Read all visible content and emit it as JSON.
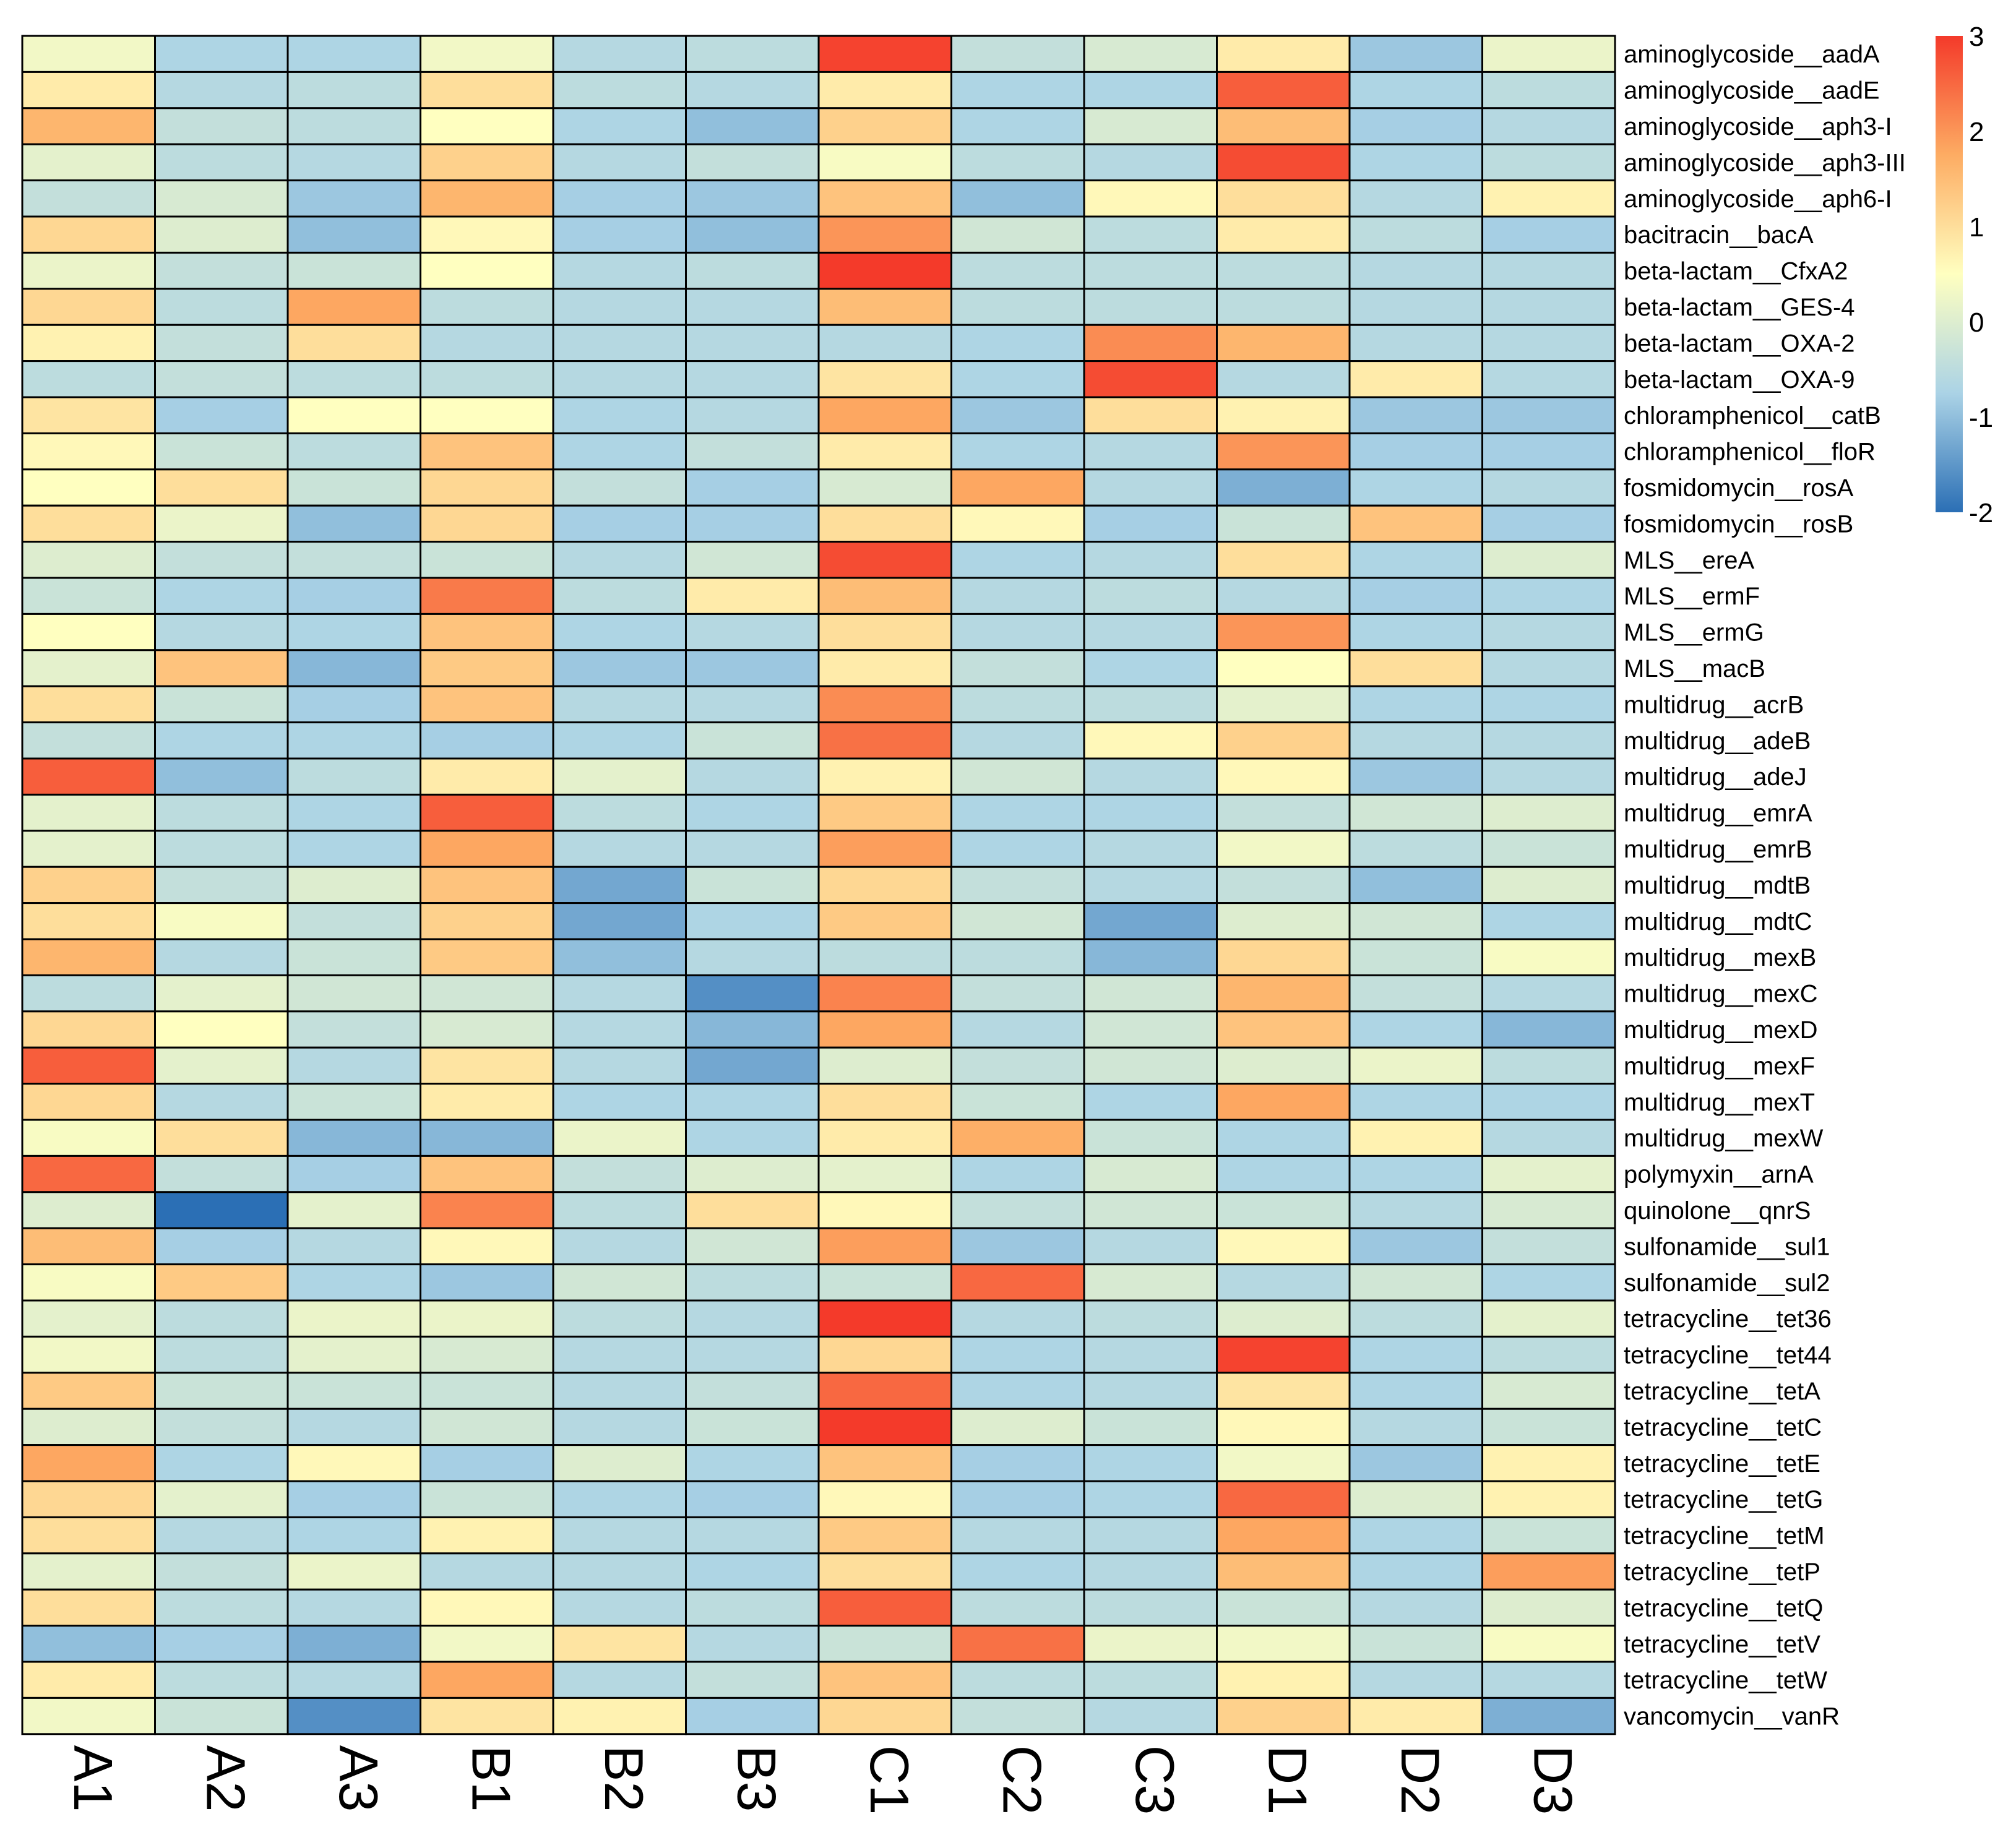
{
  "chart_data": {
    "type": "heatmap",
    "title": "",
    "xlabel": "",
    "ylabel": "",
    "columns": [
      "A1",
      "A2",
      "A3",
      "B1",
      "B2",
      "B3",
      "C1",
      "C2",
      "C3",
      "D1",
      "D2",
      "D3"
    ],
    "rows": [
      "aminoglycoside__aadA",
      "aminoglycoside__aadE",
      "aminoglycoside__aph3-I",
      "aminoglycoside__aph3-III",
      "aminoglycoside__aph6-I",
      "bacitracin__bacA",
      "beta-lactam__CfxA2",
      "beta-lactam__GES-4",
      "beta-lactam__OXA-2",
      "beta-lactam__OXA-9",
      "chloramphenicol__catB",
      "chloramphenicol__floR",
      "fosmidomycin__rosA",
      "fosmidomycin__rosB",
      "MLS__ereA",
      "MLS__ermF",
      "MLS__ermG",
      "MLS__macB",
      "multidrug__acrB",
      "multidrug__adeB",
      "multidrug__adeJ",
      "multidrug__emrA",
      "multidrug__emrB",
      "multidrug__mdtB",
      "multidrug__mdtC",
      "multidrug__mexB",
      "multidrug__mexC",
      "multidrug__mexD",
      "multidrug__mexF",
      "multidrug__mexT",
      "multidrug__mexW",
      "polymyxin__arnA",
      "quinolone__qnrS",
      "sulfonamide__sul1",
      "sulfonamide__sul2",
      "tetracycline__tet36",
      "tetracycline__tet44",
      "tetracycline__tetA",
      "tetracycline__tetC",
      "tetracycline__tetE",
      "tetracycline__tetG",
      "tetracycline__tetM",
      "tetracycline__tetP",
      "tetracycline__tetQ",
      "tetracycline__tetV",
      "tetracycline__tetW",
      "vancomycin__vanR"
    ],
    "values": [
      [
        0.3,
        -0.7,
        -0.7,
        0.3,
        -0.6,
        -0.5,
        2.9,
        -0.4,
        -0.1,
        0.8,
        -0.9,
        0.2
      ],
      [
        0.8,
        -0.6,
        -0.5,
        1.0,
        -0.5,
        -0.6,
        0.8,
        -0.7,
        -0.7,
        2.6,
        -0.7,
        -0.5
      ],
      [
        1.6,
        -0.4,
        -0.5,
        0.5,
        -0.7,
        -1.0,
        1.2,
        -0.7,
        -0.1,
        1.5,
        -0.8,
        -0.6
      ],
      [
        0.1,
        -0.5,
        -0.6,
        1.2,
        -0.6,
        -0.4,
        0.4,
        -0.5,
        -0.6,
        2.8,
        -0.7,
        -0.5
      ],
      [
        -0.4,
        -0.1,
        -0.9,
        1.6,
        -0.8,
        -0.9,
        1.4,
        -1.0,
        0.6,
        1.0,
        -0.6,
        0.7
      ],
      [
        1.1,
        0.0,
        -1.0,
        0.6,
        -0.8,
        -1.0,
        2.0,
        -0.2,
        -0.5,
        0.8,
        -0.5,
        -0.8
      ],
      [
        0.2,
        -0.4,
        -0.3,
        0.5,
        -0.6,
        -0.5,
        3.0,
        -0.5,
        -0.5,
        -0.5,
        -0.6,
        -0.6
      ],
      [
        1.1,
        -0.5,
        1.8,
        -0.5,
        -0.6,
        -0.6,
        1.5,
        -0.5,
        -0.5,
        -0.5,
        -0.6,
        -0.6
      ],
      [
        0.7,
        -0.4,
        1.0,
        -0.6,
        -0.6,
        -0.6,
        -0.6,
        -0.7,
        2.1,
        1.6,
        -0.6,
        -0.6
      ],
      [
        -0.5,
        -0.4,
        -0.5,
        -0.5,
        -0.6,
        -0.6,
        0.9,
        -0.7,
        2.8,
        -0.6,
        0.8,
        -0.6
      ],
      [
        0.9,
        -0.8,
        0.5,
        0.5,
        -0.7,
        -0.6,
        1.8,
        -0.9,
        1.0,
        0.7,
        -0.9,
        -0.9
      ],
      [
        0.6,
        -0.3,
        -0.5,
        1.4,
        -0.7,
        -0.4,
        0.8,
        -0.7,
        -0.6,
        2.0,
        -0.8,
        -0.8
      ],
      [
        0.5,
        1.0,
        -0.3,
        1.1,
        -0.4,
        -0.8,
        -0.1,
        1.8,
        -0.6,
        -1.2,
        -0.7,
        -0.6
      ],
      [
        1.0,
        0.2,
        -1.0,
        1.1,
        -0.8,
        -0.8,
        1.0,
        0.6,
        -0.8,
        -0.3,
        1.4,
        -0.8
      ],
      [
        0.0,
        -0.4,
        -0.4,
        -0.3,
        -0.6,
        -0.2,
        2.8,
        -0.7,
        -0.6,
        1.0,
        -0.7,
        0.0
      ],
      [
        -0.3,
        -0.7,
        -0.8,
        2.3,
        -0.5,
        0.8,
        1.5,
        -0.6,
        -0.5,
        -0.6,
        -0.8,
        -0.7
      ],
      [
        0.5,
        -0.6,
        -0.7,
        1.4,
        -0.7,
        -0.6,
        1.0,
        -0.6,
        -0.6,
        2.0,
        -0.7,
        -0.6
      ],
      [
        0.1,
        1.4,
        -1.1,
        1.3,
        -0.9,
        -0.9,
        0.8,
        -0.4,
        -0.7,
        0.5,
        1.0,
        -0.6
      ],
      [
        1.0,
        -0.3,
        -0.8,
        1.4,
        -0.6,
        -0.6,
        2.1,
        -0.5,
        -0.5,
        0.1,
        -0.7,
        -0.7
      ],
      [
        -0.4,
        -0.7,
        -0.7,
        -0.8,
        -0.7,
        -0.3,
        2.4,
        -0.6,
        0.6,
        1.2,
        -0.6,
        -0.6
      ],
      [
        2.6,
        -1.0,
        -0.5,
        0.8,
        0.1,
        -0.6,
        0.7,
        -0.2,
        -0.6,
        0.6,
        -0.9,
        -0.6
      ],
      [
        0.1,
        -0.5,
        -0.7,
        2.6,
        -0.5,
        -0.7,
        1.3,
        -0.7,
        -0.7,
        -0.4,
        -0.2,
        0.0
      ],
      [
        0.1,
        -0.5,
        -0.7,
        1.8,
        -0.6,
        -0.6,
        1.9,
        -0.7,
        -0.6,
        0.3,
        -0.5,
        -0.3
      ],
      [
        1.2,
        -0.4,
        0.0,
        1.4,
        -1.3,
        -0.3,
        1.1,
        -0.4,
        -0.6,
        -0.4,
        -1.0,
        0.0
      ],
      [
        1.0,
        0.4,
        -0.4,
        1.2,
        -1.3,
        -0.7,
        1.3,
        -0.2,
        -1.3,
        0.0,
        -0.2,
        -0.7
      ],
      [
        1.6,
        -0.6,
        -0.3,
        1.3,
        -1.0,
        -0.6,
        -0.5,
        -0.5,
        -1.1,
        1.1,
        -0.3,
        0.4
      ],
      [
        -0.5,
        0.1,
        -0.2,
        -0.2,
        -0.6,
        -1.6,
        2.2,
        -0.4,
        -0.2,
        1.6,
        -0.4,
        -0.6
      ],
      [
        1.1,
        0.5,
        -0.4,
        -0.1,
        -0.6,
        -1.1,
        1.8,
        -0.6,
        -0.2,
        1.4,
        -0.7,
        -1.1
      ],
      [
        2.6,
        0.1,
        -0.6,
        0.9,
        -0.6,
        -1.3,
        0.0,
        -0.4,
        -0.2,
        0.0,
        0.2,
        -0.5
      ],
      [
        1.1,
        -0.6,
        -0.3,
        0.8,
        -0.7,
        -0.7,
        1.0,
        -0.3,
        -0.7,
        1.8,
        -0.7,
        -0.7
      ],
      [
        0.4,
        1.0,
        -1.1,
        -1.1,
        0.2,
        -0.7,
        0.8,
        1.7,
        -0.3,
        -0.7,
        0.7,
        -0.6
      ],
      [
        2.5,
        -0.4,
        -0.8,
        1.4,
        -0.4,
        0.0,
        0.1,
        -0.7,
        -0.1,
        -0.7,
        -0.7,
        0.1
      ],
      [
        0.0,
        -2.0,
        0.1,
        2.2,
        -0.5,
        1.0,
        0.6,
        -0.4,
        -0.2,
        -0.3,
        -0.6,
        -0.1
      ],
      [
        1.5,
        -0.8,
        -0.6,
        0.6,
        -0.6,
        -0.2,
        1.9,
        -0.9,
        -0.6,
        0.6,
        -0.9,
        -0.4
      ],
      [
        0.4,
        1.3,
        -0.7,
        -0.9,
        -0.2,
        -0.5,
        -0.3,
        2.5,
        -0.1,
        -0.6,
        -0.2,
        -0.7
      ],
      [
        0.1,
        -0.5,
        0.2,
        0.2,
        -0.5,
        -0.6,
        3.0,
        -0.6,
        -0.5,
        0.0,
        -0.5,
        0.1
      ],
      [
        0.3,
        -0.5,
        0.1,
        -0.1,
        -0.6,
        -0.6,
        1.1,
        -0.7,
        -0.6,
        2.9,
        -0.7,
        -0.5
      ],
      [
        1.3,
        -0.3,
        -0.3,
        -0.3,
        -0.6,
        -0.4,
        2.5,
        -0.7,
        -0.6,
        0.9,
        -0.7,
        -0.1
      ],
      [
        0.0,
        -0.4,
        -0.6,
        -0.2,
        -0.6,
        -0.3,
        3.0,
        0.0,
        -0.3,
        0.6,
        -0.6,
        -0.3
      ],
      [
        1.8,
        -0.7,
        0.6,
        -0.8,
        0.0,
        -0.7,
        1.4,
        -0.8,
        -0.7,
        0.3,
        -0.9,
        0.7
      ],
      [
        1.1,
        0.1,
        -0.8,
        -0.3,
        -0.7,
        -0.8,
        0.6,
        -0.8,
        -0.7,
        2.5,
        0.0,
        0.7
      ],
      [
        1.0,
        -0.6,
        -0.7,
        0.7,
        -0.6,
        -0.6,
        1.3,
        -0.6,
        -0.6,
        1.8,
        -0.7,
        -0.3
      ],
      [
        0.1,
        -0.4,
        0.2,
        -0.6,
        -0.6,
        -0.7,
        1.0,
        -0.7,
        -0.6,
        1.5,
        -0.7,
        1.9
      ],
      [
        1.0,
        -0.5,
        -0.6,
        0.6,
        -0.6,
        -0.5,
        2.6,
        -0.5,
        -0.5,
        -0.3,
        -0.6,
        0.0
      ],
      [
        -1.0,
        -0.8,
        -1.2,
        0.3,
        0.9,
        -0.6,
        -0.3,
        2.4,
        0.2,
        0.3,
        -0.3,
        0.4
      ],
      [
        0.8,
        -0.5,
        -0.6,
        1.8,
        -0.6,
        -0.4,
        1.4,
        -0.5,
        -0.5,
        0.7,
        -0.6,
        -0.6
      ],
      [
        0.3,
        -0.3,
        -1.6,
        0.9,
        0.7,
        -0.8,
        1.1,
        -0.4,
        -0.6,
        1.2,
        0.8,
        -1.2
      ]
    ],
    "colorbar": {
      "range": [
        -2,
        3
      ],
      "ticks": [
        3,
        2,
        1,
        0,
        -1,
        -2
      ],
      "tick_labels": [
        "3",
        "2",
        "1",
        "0",
        "-1",
        "-2"
      ],
      "colors": [
        "#2b6fb5",
        "#abd3e6",
        "#ffffc0",
        "#fdac63",
        "#f43a2a"
      ],
      "color_stops": [
        -2,
        -0.75,
        0.5,
        1.75,
        3
      ]
    },
    "grid": true,
    "legend_placement": "top-right"
  }
}
